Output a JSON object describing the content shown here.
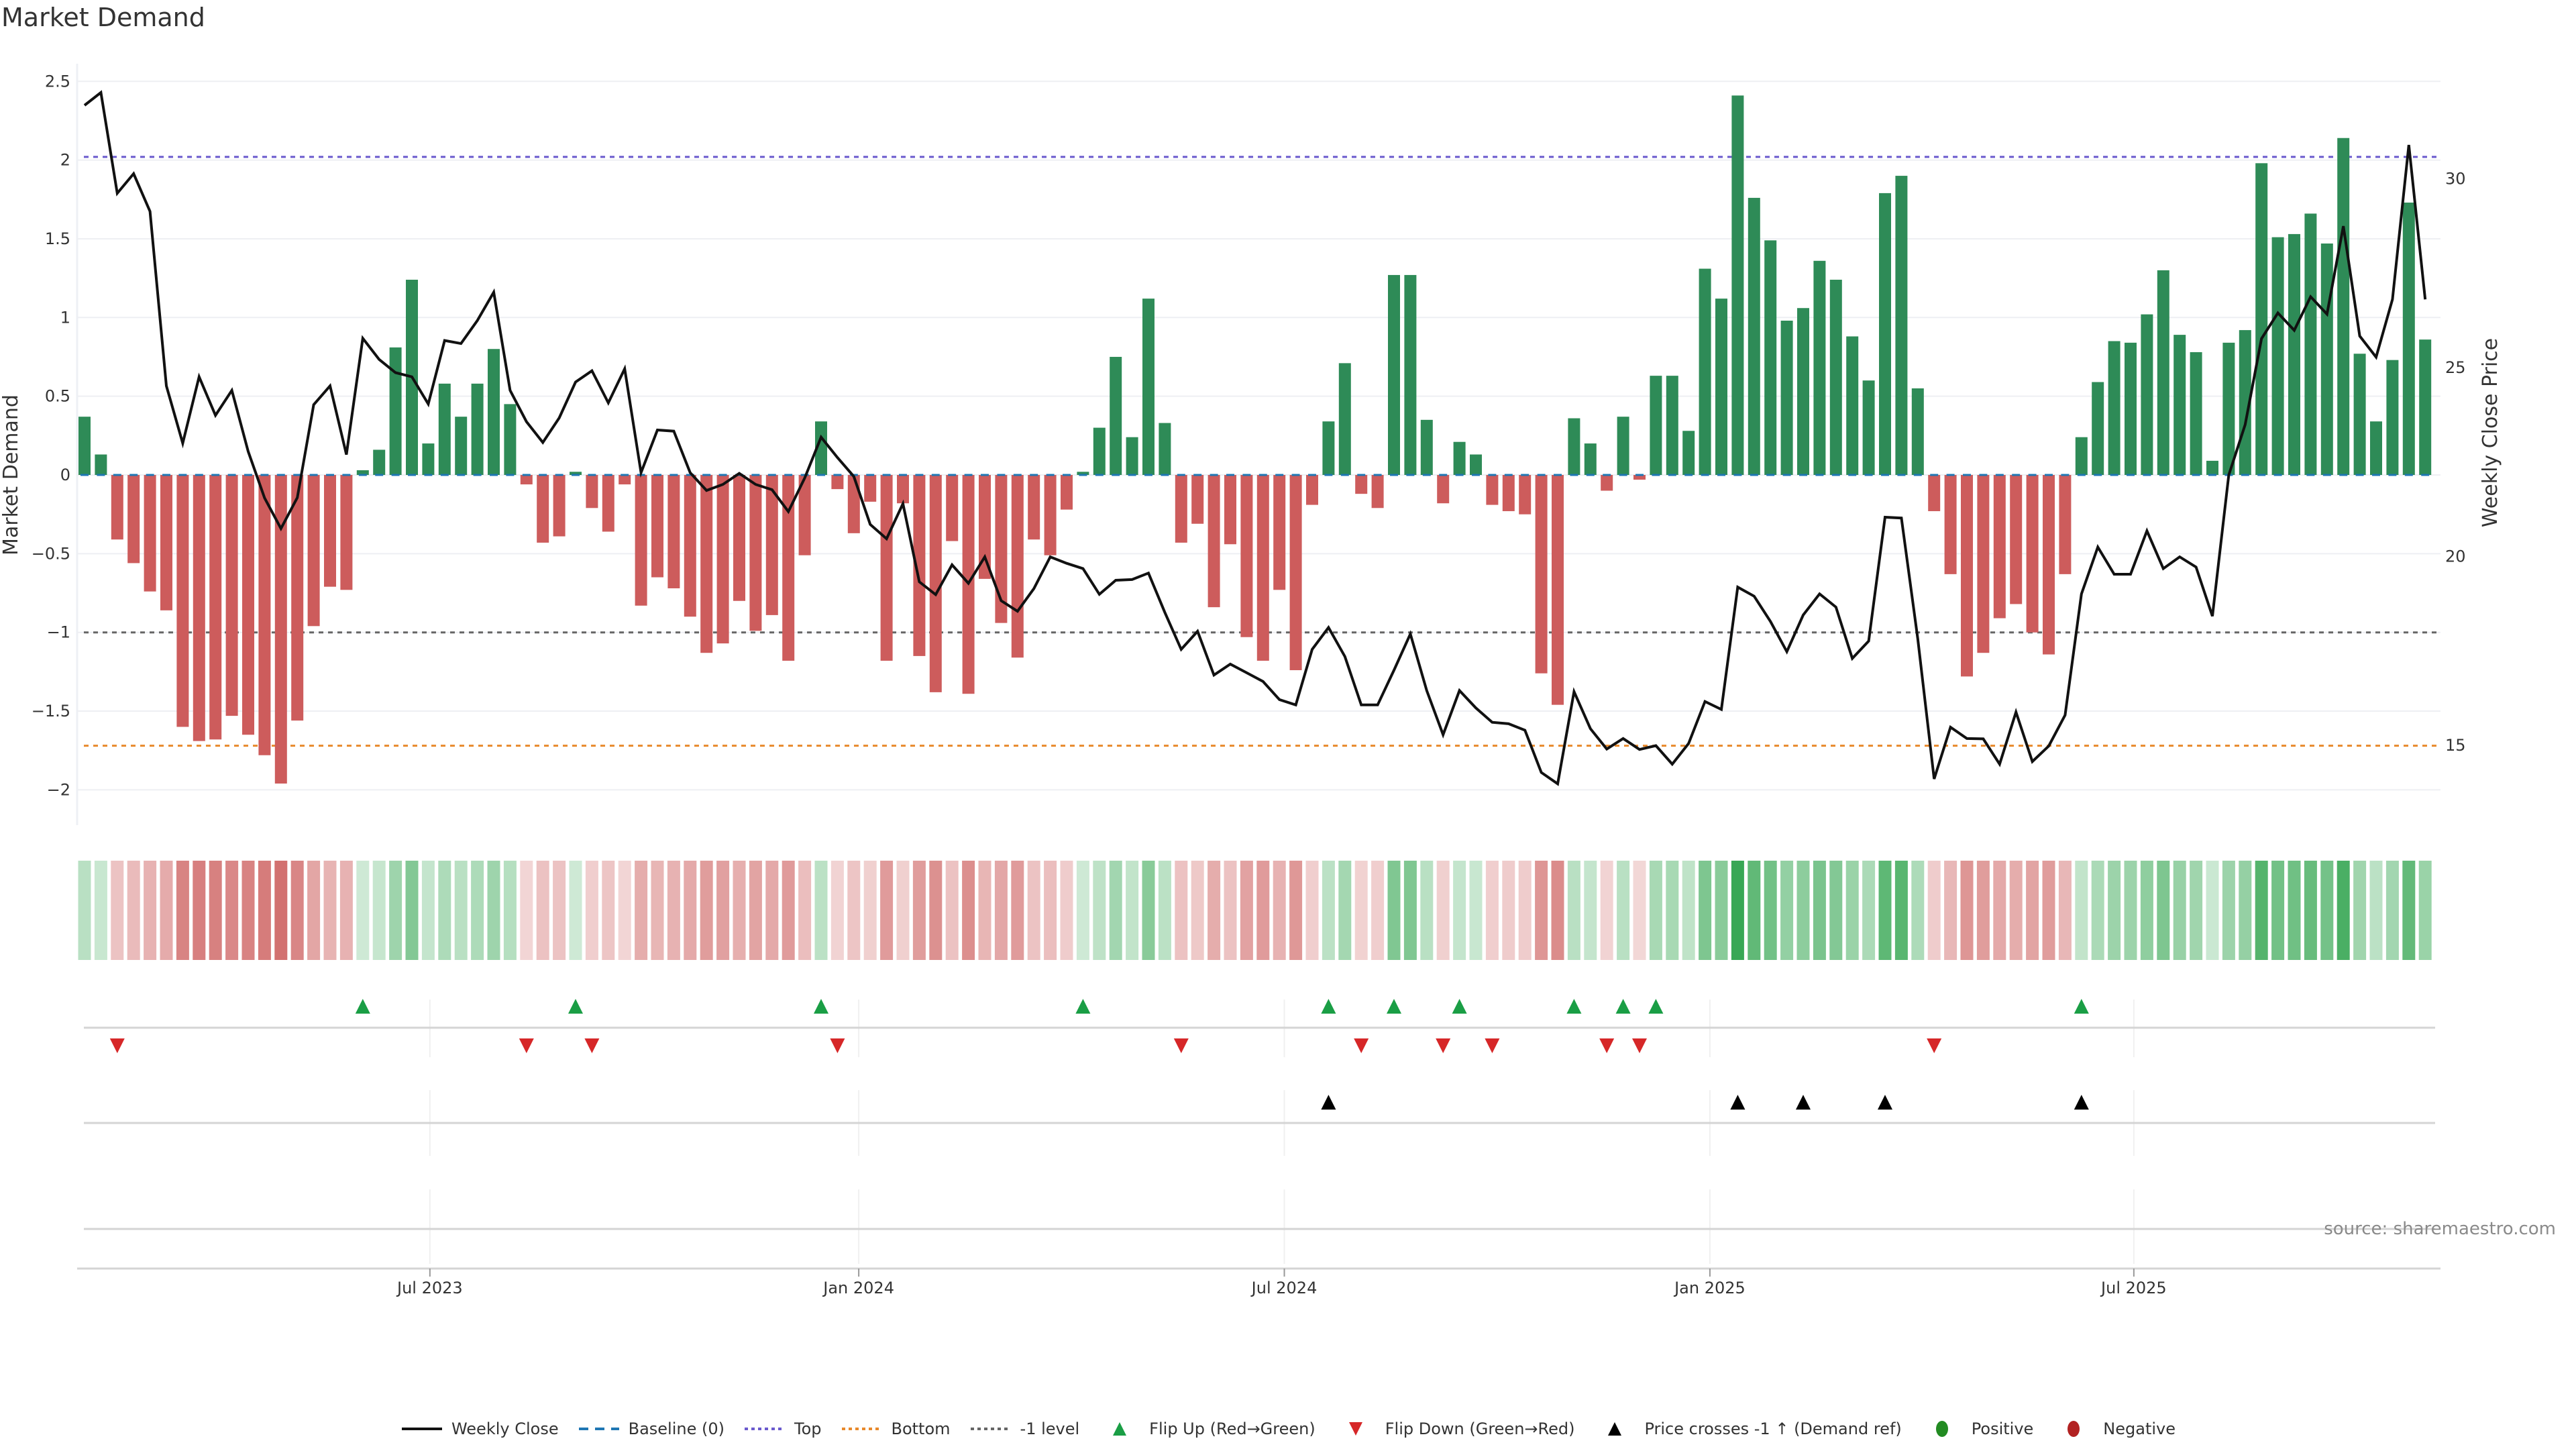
{
  "title": "Market Demand",
  "source": "source: sharemaestro.com",
  "colors": {
    "positive_bar": "#2e8b57",
    "negative_bar": "#cd5c5c",
    "line": "#111111",
    "baseline": "#1f77b4",
    "top": "#6a5acd",
    "bottom": "#e8892b",
    "minus_one": "#666666",
    "flip_up": "#1a9e45",
    "flip_down": "#d62728",
    "price_cross": "#000000",
    "heat_positive": "#2ca24a",
    "heat_negative": "#c8504f",
    "legend_positive": "#228b22",
    "legend_negative": "#b22222"
  },
  "chart_data": {
    "type": "bar",
    "title": "Market Demand",
    "xlabel": "",
    "ylabel": "Market Demand",
    "y2label": "Weekly Close Price",
    "ylim": [
      -2.2,
      2.65
    ],
    "yticks": [
      2.5,
      2,
      1.5,
      1,
      0.5,
      0,
      -0.5,
      -1,
      -1.5,
      -2
    ],
    "ytick_labels": [
      "2.5",
      "2",
      "1.5",
      "1",
      "0.5",
      "0",
      "−0.5",
      "−1",
      "−1.5",
      "−2"
    ],
    "y2ticks": [
      15,
      20,
      25,
      30
    ],
    "y2tick_labels": [
      "15",
      "20",
      "25",
      "30"
    ],
    "x_unit": "week index",
    "xticks": [
      {
        "label": "Jul 2023",
        "week": 21.1
      },
      {
        "label": "Jan 2024",
        "week": 47.3
      },
      {
        "label": "Jul 2024",
        "week": 73.3
      },
      {
        "label": "Jan 2025",
        "week": 99.3
      },
      {
        "label": "Jul 2025",
        "week": 125.2
      }
    ],
    "reference_lines": {
      "baseline": 0,
      "top": 2.02,
      "bottom": -1.72,
      "minus_one": -1
    },
    "demand": [
      0.37,
      0.13,
      -0.41,
      -0.56,
      -0.74,
      -0.86,
      -1.6,
      -1.69,
      -1.68,
      -1.53,
      -1.65,
      -1.78,
      -1.96,
      -1.56,
      -0.96,
      -0.71,
      -0.73,
      0.03,
      0.16,
      0.81,
      1.24,
      0.2,
      0.58,
      0.37,
      0.58,
      0.8,
      0.45,
      -0.06,
      -0.43,
      -0.39,
      0.02,
      -0.21,
      -0.36,
      -0.06,
      -0.83,
      -0.65,
      -0.72,
      -0.9,
      -1.13,
      -1.07,
      -0.8,
      -0.99,
      -0.89,
      -1.18,
      -0.51,
      0.34,
      -0.09,
      -0.37,
      -0.17,
      -1.18,
      -0.18,
      -1.15,
      -1.38,
      -0.42,
      -1.39,
      -0.66,
      -0.94,
      -1.16,
      -0.41,
      -0.51,
      -0.22,
      0.02,
      0.3,
      0.75,
      0.24,
      1.12,
      0.33,
      -0.43,
      -0.31,
      -0.84,
      -0.44,
      -1.03,
      -1.18,
      -0.73,
      -1.24,
      -0.19,
      0.34,
      0.71,
      -0.12,
      -0.21,
      1.27,
      1.27,
      0.35,
      -0.18,
      0.21,
      0.13,
      -0.19,
      -0.23,
      -0.25,
      -1.26,
      -1.46,
      0.36,
      0.2,
      -0.1,
      0.37,
      -0.03,
      0.63,
      0.63,
      0.28,
      1.31,
      1.12,
      2.41,
      1.76,
      1.49,
      0.98,
      1.06,
      1.36,
      1.24,
      0.88,
      0.6,
      1.79,
      1.9,
      0.55,
      -0.23,
      -0.63,
      -1.28,
      -1.13,
      -0.91,
      -0.82,
      -1.0,
      -1.14,
      -0.63,
      0.24,
      0.59,
      0.85,
      0.84,
      1.02,
      1.3,
      0.89,
      0.78,
      0.09,
      0.84,
      0.92,
      1.98,
      1.51,
      1.53,
      1.66,
      1.47,
      2.14,
      0.77,
      0.34,
      0.73,
      1.73,
      0.86
    ],
    "weekly_close": [
      31.93,
      32.27,
      29.6,
      30.12,
      29.12,
      24.5,
      22.98,
      24.74,
      23.72,
      24.38,
      22.76,
      21.53,
      20.72,
      21.54,
      24.0,
      24.5,
      22.68,
      25.76,
      25.2,
      24.85,
      24.74,
      24.02,
      25.7,
      25.62,
      26.23,
      26.98,
      24.38,
      23.55,
      23.0,
      23.65,
      24.6,
      24.9,
      24.05,
      24.95,
      22.2,
      23.33,
      23.3,
      22.2,
      21.73,
      21.89,
      22.18,
      21.89,
      21.75,
      21.17,
      22.06,
      23.14,
      22.6,
      22.1,
      20.83,
      20.45,
      21.38,
      19.31,
      18.97,
      19.76,
      19.27,
      19.97,
      18.81,
      18.53,
      19.13,
      19.97,
      19.8,
      19.66,
      18.98,
      19.35,
      19.37,
      19.54,
      18.5,
      17.52,
      18.0,
      16.84,
      17.13,
      16.9,
      16.67,
      16.19,
      16.05,
      17.52,
      18.1,
      17.33,
      16.05,
      16.05,
      16.97,
      17.93,
      16.43,
      15.26,
      16.43,
      15.97,
      15.59,
      15.55,
      15.38,
      14.26,
      13.96,
      16.4,
      15.42,
      14.88,
      15.16,
      14.87,
      14.97,
      14.48,
      15.03,
      16.14,
      15.93,
      19.17,
      18.93,
      18.26,
      17.46,
      18.43,
      18.99,
      18.64,
      17.28,
      17.74,
      21.02,
      21.0,
      17.8,
      14.09,
      15.46,
      15.16,
      15.15,
      14.48,
      15.86,
      14.55,
      14.96,
      15.78,
      18.99,
      20.23,
      19.51,
      19.51,
      20.66,
      19.66,
      19.97,
      19.7,
      18.4,
      22.14,
      23.47,
      25.75,
      26.43,
      25.97,
      26.86,
      26.4,
      28.73,
      25.82,
      25.26,
      26.79,
      30.88,
      26.79
    ],
    "price_axis_map": {
      "price_at_demand_zero": 22.14,
      "price_per_demand_unit": 4.17
    },
    "events": {
      "flip_up_weeks": [
        17,
        30,
        45,
        61,
        76,
        80,
        84,
        91,
        94,
        96,
        122
      ],
      "flip_down_weeks": [
        2,
        27,
        31,
        46,
        67,
        78,
        83,
        86,
        93,
        95,
        113
      ],
      "price_cross_weeks": [
        76,
        101,
        105,
        110,
        122
      ]
    },
    "legend_position": "bottom",
    "legend": [
      {
        "key": "weekly-close",
        "label": "Weekly Close",
        "symbol": "solid-line"
      },
      {
        "key": "baseline",
        "label": "Baseline (0)",
        "symbol": "dash-line"
      },
      {
        "key": "top",
        "label": "Top",
        "symbol": "dot-line"
      },
      {
        "key": "bottom",
        "label": "Bottom",
        "symbol": "dot-line"
      },
      {
        "key": "minus-one",
        "label": "-1 level",
        "symbol": "dot-line"
      },
      {
        "key": "flip-up",
        "label": "Flip Up (Red→Green)",
        "symbol": "triangle-up"
      },
      {
        "key": "flip-down",
        "label": "Flip Down (Green→Red)",
        "symbol": "triangle-down"
      },
      {
        "key": "price-cross",
        "label": "Price crosses -1 ↑ (Demand ref)",
        "symbol": "triangle-up"
      },
      {
        "key": "positive",
        "label": "Positive",
        "symbol": "circle"
      },
      {
        "key": "negative",
        "label": "Negative",
        "symbol": "circle"
      }
    ]
  }
}
